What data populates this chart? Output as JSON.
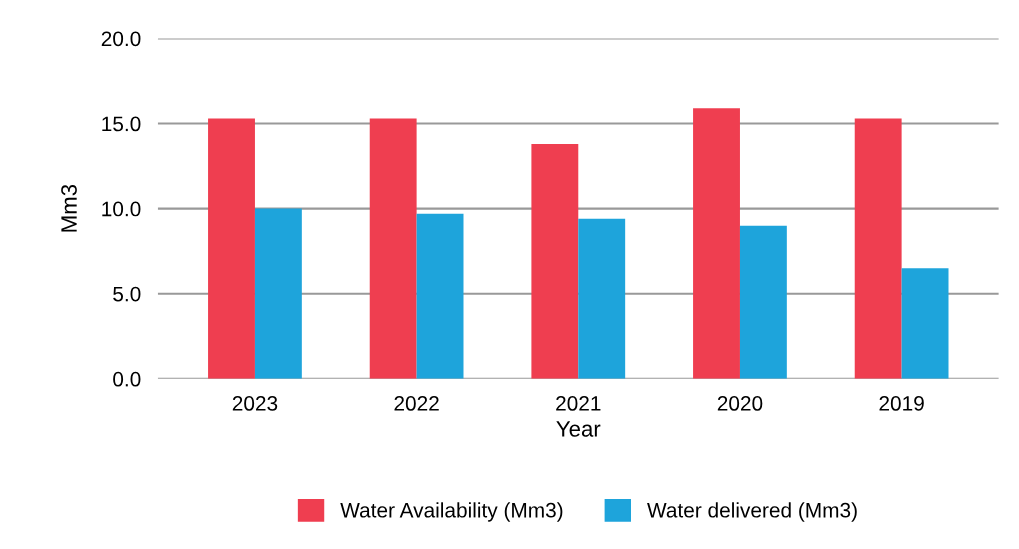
{
  "chart_data": {
    "type": "bar",
    "xlabel": "Year",
    "ylabel": "Mm3",
    "categories": [
      "2023",
      "2022",
      "2021",
      "2020",
      "2019"
    ],
    "series": [
      {
        "name": "Water Availability (Mm3)",
        "color": "#ef3e50",
        "values": [
          15.3,
          15.3,
          13.8,
          15.9,
          15.3
        ]
      },
      {
        "name": "Water delivered (Mm3)",
        "color": "#1ea4db",
        "values": [
          10.0,
          9.7,
          9.4,
          9.0,
          6.5
        ]
      }
    ],
    "ylim": [
      0,
      20
    ],
    "yticks": [
      {
        "value": 0,
        "label": "0.0"
      },
      {
        "value": 5,
        "label": "5.0"
      },
      {
        "value": 10,
        "label": "10.0"
      },
      {
        "value": 15,
        "label": "15.0"
      },
      {
        "value": 20,
        "label": "20.0"
      }
    ],
    "grid": "y",
    "legend": "bottom"
  }
}
